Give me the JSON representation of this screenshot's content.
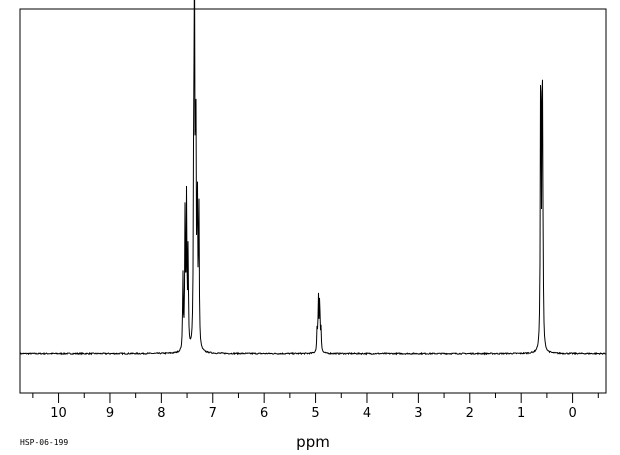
{
  "chart_data": {
    "type": "line",
    "xlabel": "ppm",
    "x_reversed": true,
    "xlim": [
      10.75,
      -0.65
    ],
    "ylim": [
      -0.12,
      1.05
    ],
    "xticks": [
      10,
      9,
      8,
      7,
      6,
      5,
      4,
      3,
      2,
      1,
      0
    ],
    "sample_id": "HSP-06-199",
    "grid": false,
    "line_color": "#000000",
    "series": [
      {
        "peaks": [
          {
            "ppm": 7.58,
            "height": 0.23
          },
          {
            "ppm": 7.54,
            "height": 0.41
          },
          {
            "ppm": 7.51,
            "height": 0.46
          },
          {
            "ppm": 7.48,
            "height": 0.3
          },
          {
            "ppm": 7.37,
            "height": 0.63
          },
          {
            "ppm": 7.355,
            "height": 1.0
          },
          {
            "ppm": 7.33,
            "height": 0.78
          },
          {
            "ppm": 7.3,
            "height": 0.48
          },
          {
            "ppm": 7.27,
            "height": 0.45
          },
          {
            "ppm": 4.97,
            "height": 0.07
          },
          {
            "ppm": 4.945,
            "height": 0.17
          },
          {
            "ppm": 4.92,
            "height": 0.17
          },
          {
            "ppm": 4.895,
            "height": 0.07
          },
          {
            "ppm": 0.62,
            "height": 0.98
          },
          {
            "ppm": 0.59,
            "height": 0.95
          },
          {
            "ppm": 0.575,
            "height": 0.2
          }
        ]
      }
    ]
  }
}
